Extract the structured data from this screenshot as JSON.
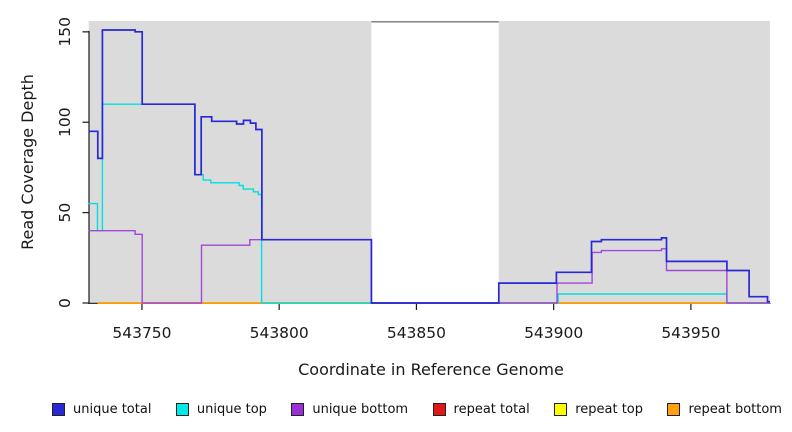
{
  "chart_data": {
    "type": "line",
    "subtype": "step-coverage",
    "title": "",
    "xlabel": "Coordinate in Reference Genome",
    "ylabel": "Read Coverage Depth",
    "x_ticks": [
      543750,
      543800,
      543850,
      543900,
      543950
    ],
    "y_ticks": [
      0,
      50,
      100,
      150
    ],
    "x_range": [
      543730.6,
      543979
    ],
    "y_range": [
      0,
      156
    ],
    "ylim_ticks": [
      0,
      150
    ],
    "grid": false,
    "legend_position": "bottom",
    "background_color": "#ffffff",
    "region_color": "#dbdbdb",
    "gap_top_line_color": "#8c8c8c",
    "axis_color": "#1a1a1a",
    "background_regions": [
      {
        "name": "left-repeat-region",
        "x1": 543730.6,
        "x2": 543833.6
      },
      {
        "name": "right-repeat-region",
        "x1": 543880,
        "x2": 543978.8
      }
    ],
    "gap_region": {
      "name": "non-repeat-gap",
      "x1": 543833.6,
      "x2": 543880
    },
    "series": [
      {
        "name": "repeat total",
        "color": "#e01818",
        "width": 1.5,
        "points": [
          [
            543733.8,
            0
          ]
        ],
        "end": 543978.8
      },
      {
        "name": "repeat top",
        "color": "#ffff00",
        "width": 1.5,
        "points": [
          [
            543733.8,
            0
          ]
        ],
        "end": 543978.8
      },
      {
        "name": "repeat bottom",
        "color": "#ffa010",
        "width": 1.6,
        "points": [
          [
            543733.8,
            0
          ]
        ],
        "end": 543978.8
      },
      {
        "name": "unique top",
        "color": "#00e0e0",
        "width": 1.4,
        "points": [
          [
            543730.6,
            55
          ],
          [
            543733.8,
            40
          ],
          [
            543735.6,
            110
          ],
          [
            543769.3,
            71
          ],
          [
            543772.3,
            68
          ],
          [
            543775.1,
            66.5
          ],
          [
            543785.4,
            65
          ],
          [
            543786.9,
            63
          ],
          [
            543790.6,
            61.5
          ],
          [
            543792.4,
            60
          ],
          [
            543793.6,
            0
          ],
          [
            543901.6,
            5
          ],
          [
            543963.1,
            0
          ]
        ],
        "end": 543978.8
      },
      {
        "name": "unique bottom",
        "color": "#a048d8",
        "width": 1.4,
        "points": [
          [
            543730.6,
            40
          ],
          [
            543747.5,
            38
          ],
          [
            543750.1,
            0
          ],
          [
            543771.7,
            32
          ],
          [
            543789.3,
            35
          ],
          [
            543833.6,
            0
          ],
          [
            543901.2,
            11
          ],
          [
            543914,
            28
          ],
          [
            543917.4,
            29
          ],
          [
            543939.3,
            30
          ],
          [
            543941.1,
            18
          ],
          [
            543963.1,
            0
          ]
        ],
        "end": 543978.8
      },
      {
        "name": "unique total",
        "color": "#2828d4",
        "width": 1.7,
        "points": [
          [
            543730.6,
            95
          ],
          [
            543733.9,
            80
          ],
          [
            543735.6,
            151
          ],
          [
            543747.5,
            150
          ],
          [
            543750.1,
            110
          ],
          [
            543769.3,
            71
          ],
          [
            543771.6,
            103
          ],
          [
            543775.4,
            100.5
          ],
          [
            543784.5,
            99
          ],
          [
            543787,
            101
          ],
          [
            543789.5,
            99.5
          ],
          [
            543791.5,
            96
          ],
          [
            543793.7,
            35
          ],
          [
            543833.6,
            0
          ],
          [
            543880,
            11
          ],
          [
            543901,
            17
          ],
          [
            543913.8,
            34
          ],
          [
            543917.4,
            35
          ],
          [
            543939.3,
            36
          ],
          [
            543941.1,
            23
          ],
          [
            543963.1,
            18
          ],
          [
            543971.2,
            3.5
          ],
          [
            543977.9,
            0.7
          ]
        ],
        "end": 543978.8
      }
    ],
    "legend": {
      "items": [
        {
          "label": "unique total",
          "color": "#2828d4"
        },
        {
          "label": "unique top",
          "color": "#00e8e8"
        },
        {
          "label": "unique bottom",
          "color": "#9b30d8"
        },
        {
          "label": "repeat total",
          "color": "#e01818"
        },
        {
          "label": "repeat top",
          "color": "#ffff00"
        },
        {
          "label": "repeat bottom",
          "color": "#ffa010"
        }
      ]
    }
  }
}
